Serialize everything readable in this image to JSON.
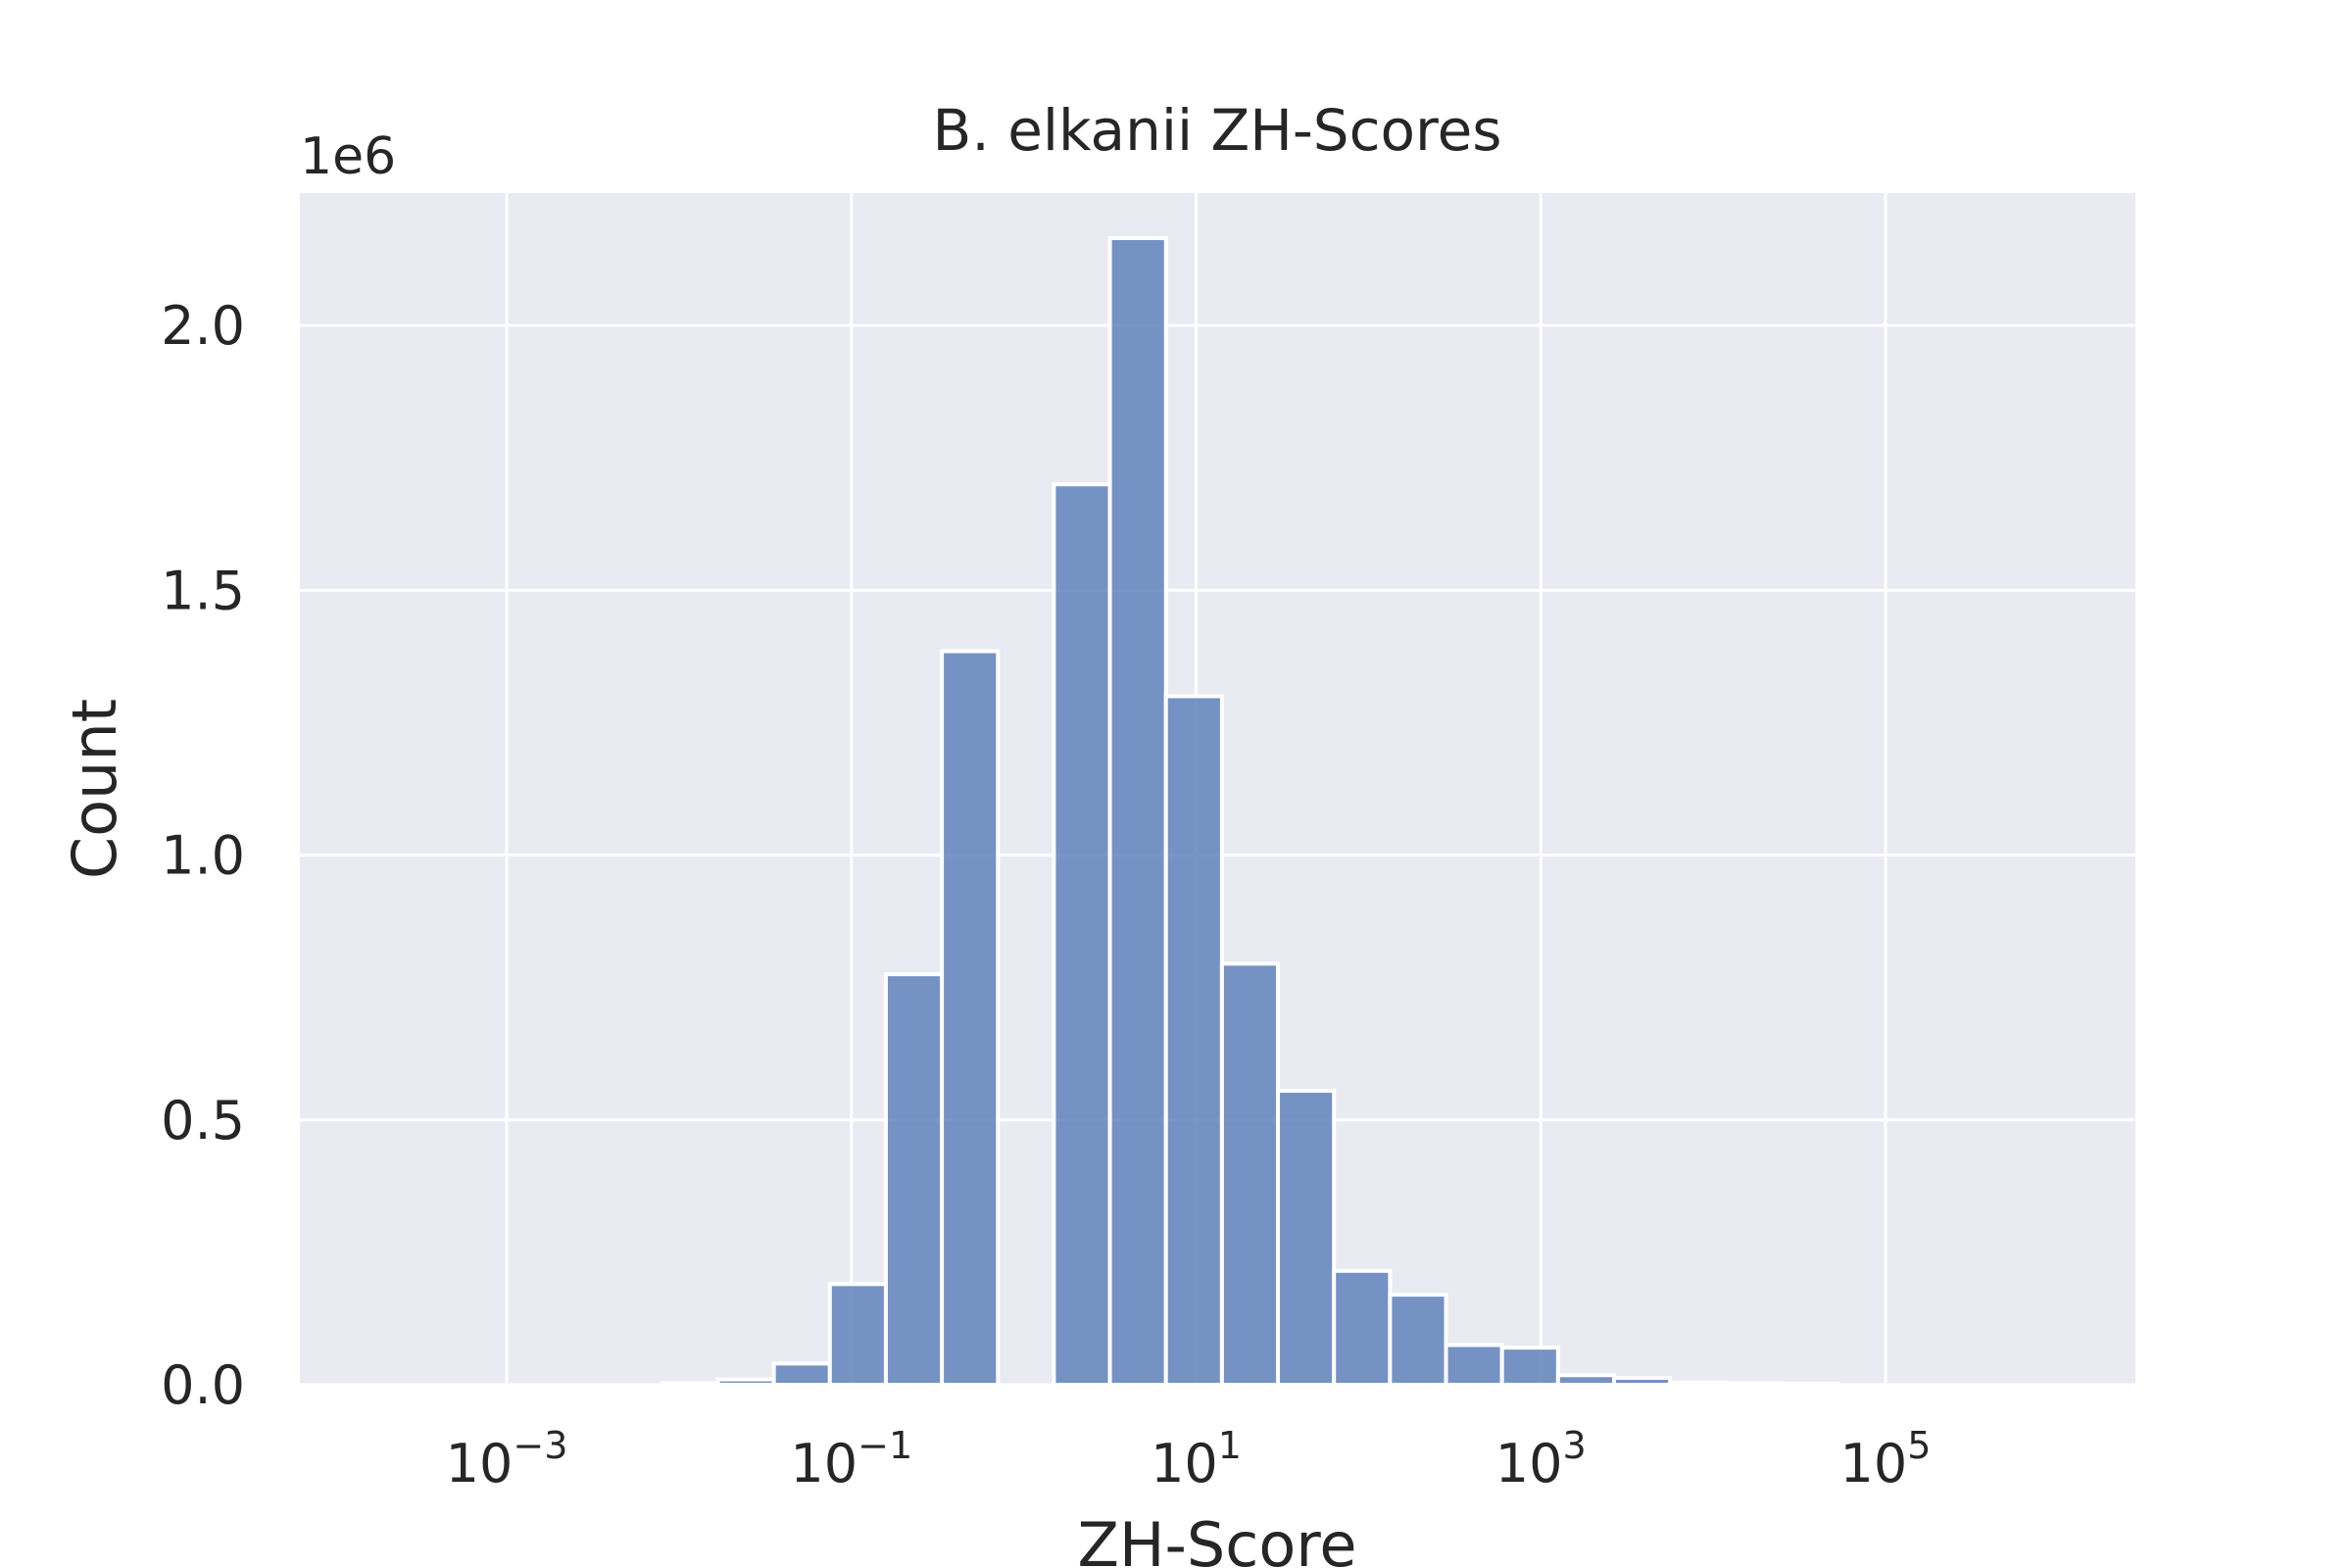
{
  "chart_data": {
    "type": "bar",
    "title": "B. elkanii ZH-Scores",
    "xlabel": "ZH-Score",
    "ylabel": "Count",
    "y_offset_label": "1e6",
    "x_scale": "log",
    "x_range_log10": [
      -4.2,
      6.45
    ],
    "ylim": [
      0,
      2.25
    ],
    "y_unit_multiplier": 1000000,
    "grid": true,
    "background": "#eaeaf2",
    "bar_color": "#5a7fb8",
    "x_ticks": [
      {
        "base": "10",
        "exp": "−3",
        "value": 0.001
      },
      {
        "base": "10",
        "exp": "−1",
        "value": 0.1
      },
      {
        "base": "10",
        "exp": "1",
        "value": 10
      },
      {
        "base": "10",
        "exp": "3",
        "value": 1000
      },
      {
        "base": "10",
        "exp": "5",
        "value": 100000
      }
    ],
    "y_ticks": [
      {
        "label": "0.0",
        "value": 0.0
      },
      {
        "label": "0.5",
        "value": 0.5
      },
      {
        "label": "1.0",
        "value": 1.0
      },
      {
        "label": "1.5",
        "value": 1.5
      },
      {
        "label": "2.0",
        "value": 2.0
      }
    ],
    "bin_edges_log10": [
      -2.1,
      -1.775,
      -1.45,
      -1.125,
      -0.8,
      -0.475,
      -0.15,
      0.175,
      0.5,
      0.825,
      1.15,
      1.475,
      1.8,
      2.125,
      2.45,
      2.775,
      3.1,
      3.425,
      3.75,
      4.075,
      4.4,
      4.725
    ],
    "values": [
      0.003,
      0.01,
      0.04,
      0.19,
      0.775,
      1.385,
      0.0,
      1.7,
      2.165,
      1.3,
      0.795,
      0.555,
      0.215,
      0.17,
      0.075,
      0.07,
      0.018,
      0.013,
      0.004,
      0.003,
      0.002
    ]
  }
}
